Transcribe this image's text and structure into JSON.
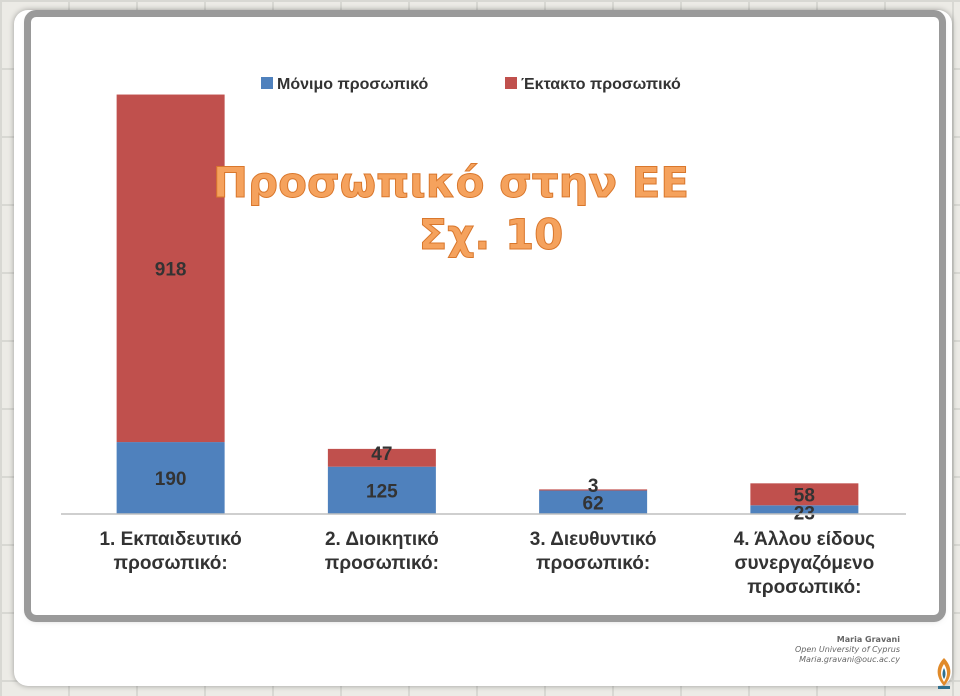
{
  "slide": {
    "title_line1": "Προσωπικό στην ΕΕ",
    "title_line2": "Σχ. 10"
  },
  "footer": {
    "name": "Maria Gravani",
    "university": "Open University of Cyprus",
    "email": "Maria.gravani@ouc.ac.cy",
    "logo_icon": "ouc-logo-icon"
  },
  "chart_data": {
    "type": "bar",
    "stacked": true,
    "categories": [
      [
        "1. Εκπαιδευτικό",
        "προσωπικό:"
      ],
      [
        "2. Διοικητικό",
        "προσωπικό:"
      ],
      [
        "3. Διευθυντικό",
        "προσωπικό:"
      ],
      [
        "4. Άλλου είδους",
        "συνεργαζόμενο",
        "προσωπικό:"
      ]
    ],
    "series": [
      {
        "name": "Μόνιμο προσωπικό",
        "color": "#4f81bd",
        "values": [
          190,
          125,
          62,
          23
        ]
      },
      {
        "name": "Έκτακτο προσωπικό",
        "color": "#c0504d",
        "values": [
          918,
          47,
          3,
          58
        ]
      }
    ],
    "ylim": [
      0,
      1120
    ],
    "legend": "top",
    "grid": false
  }
}
